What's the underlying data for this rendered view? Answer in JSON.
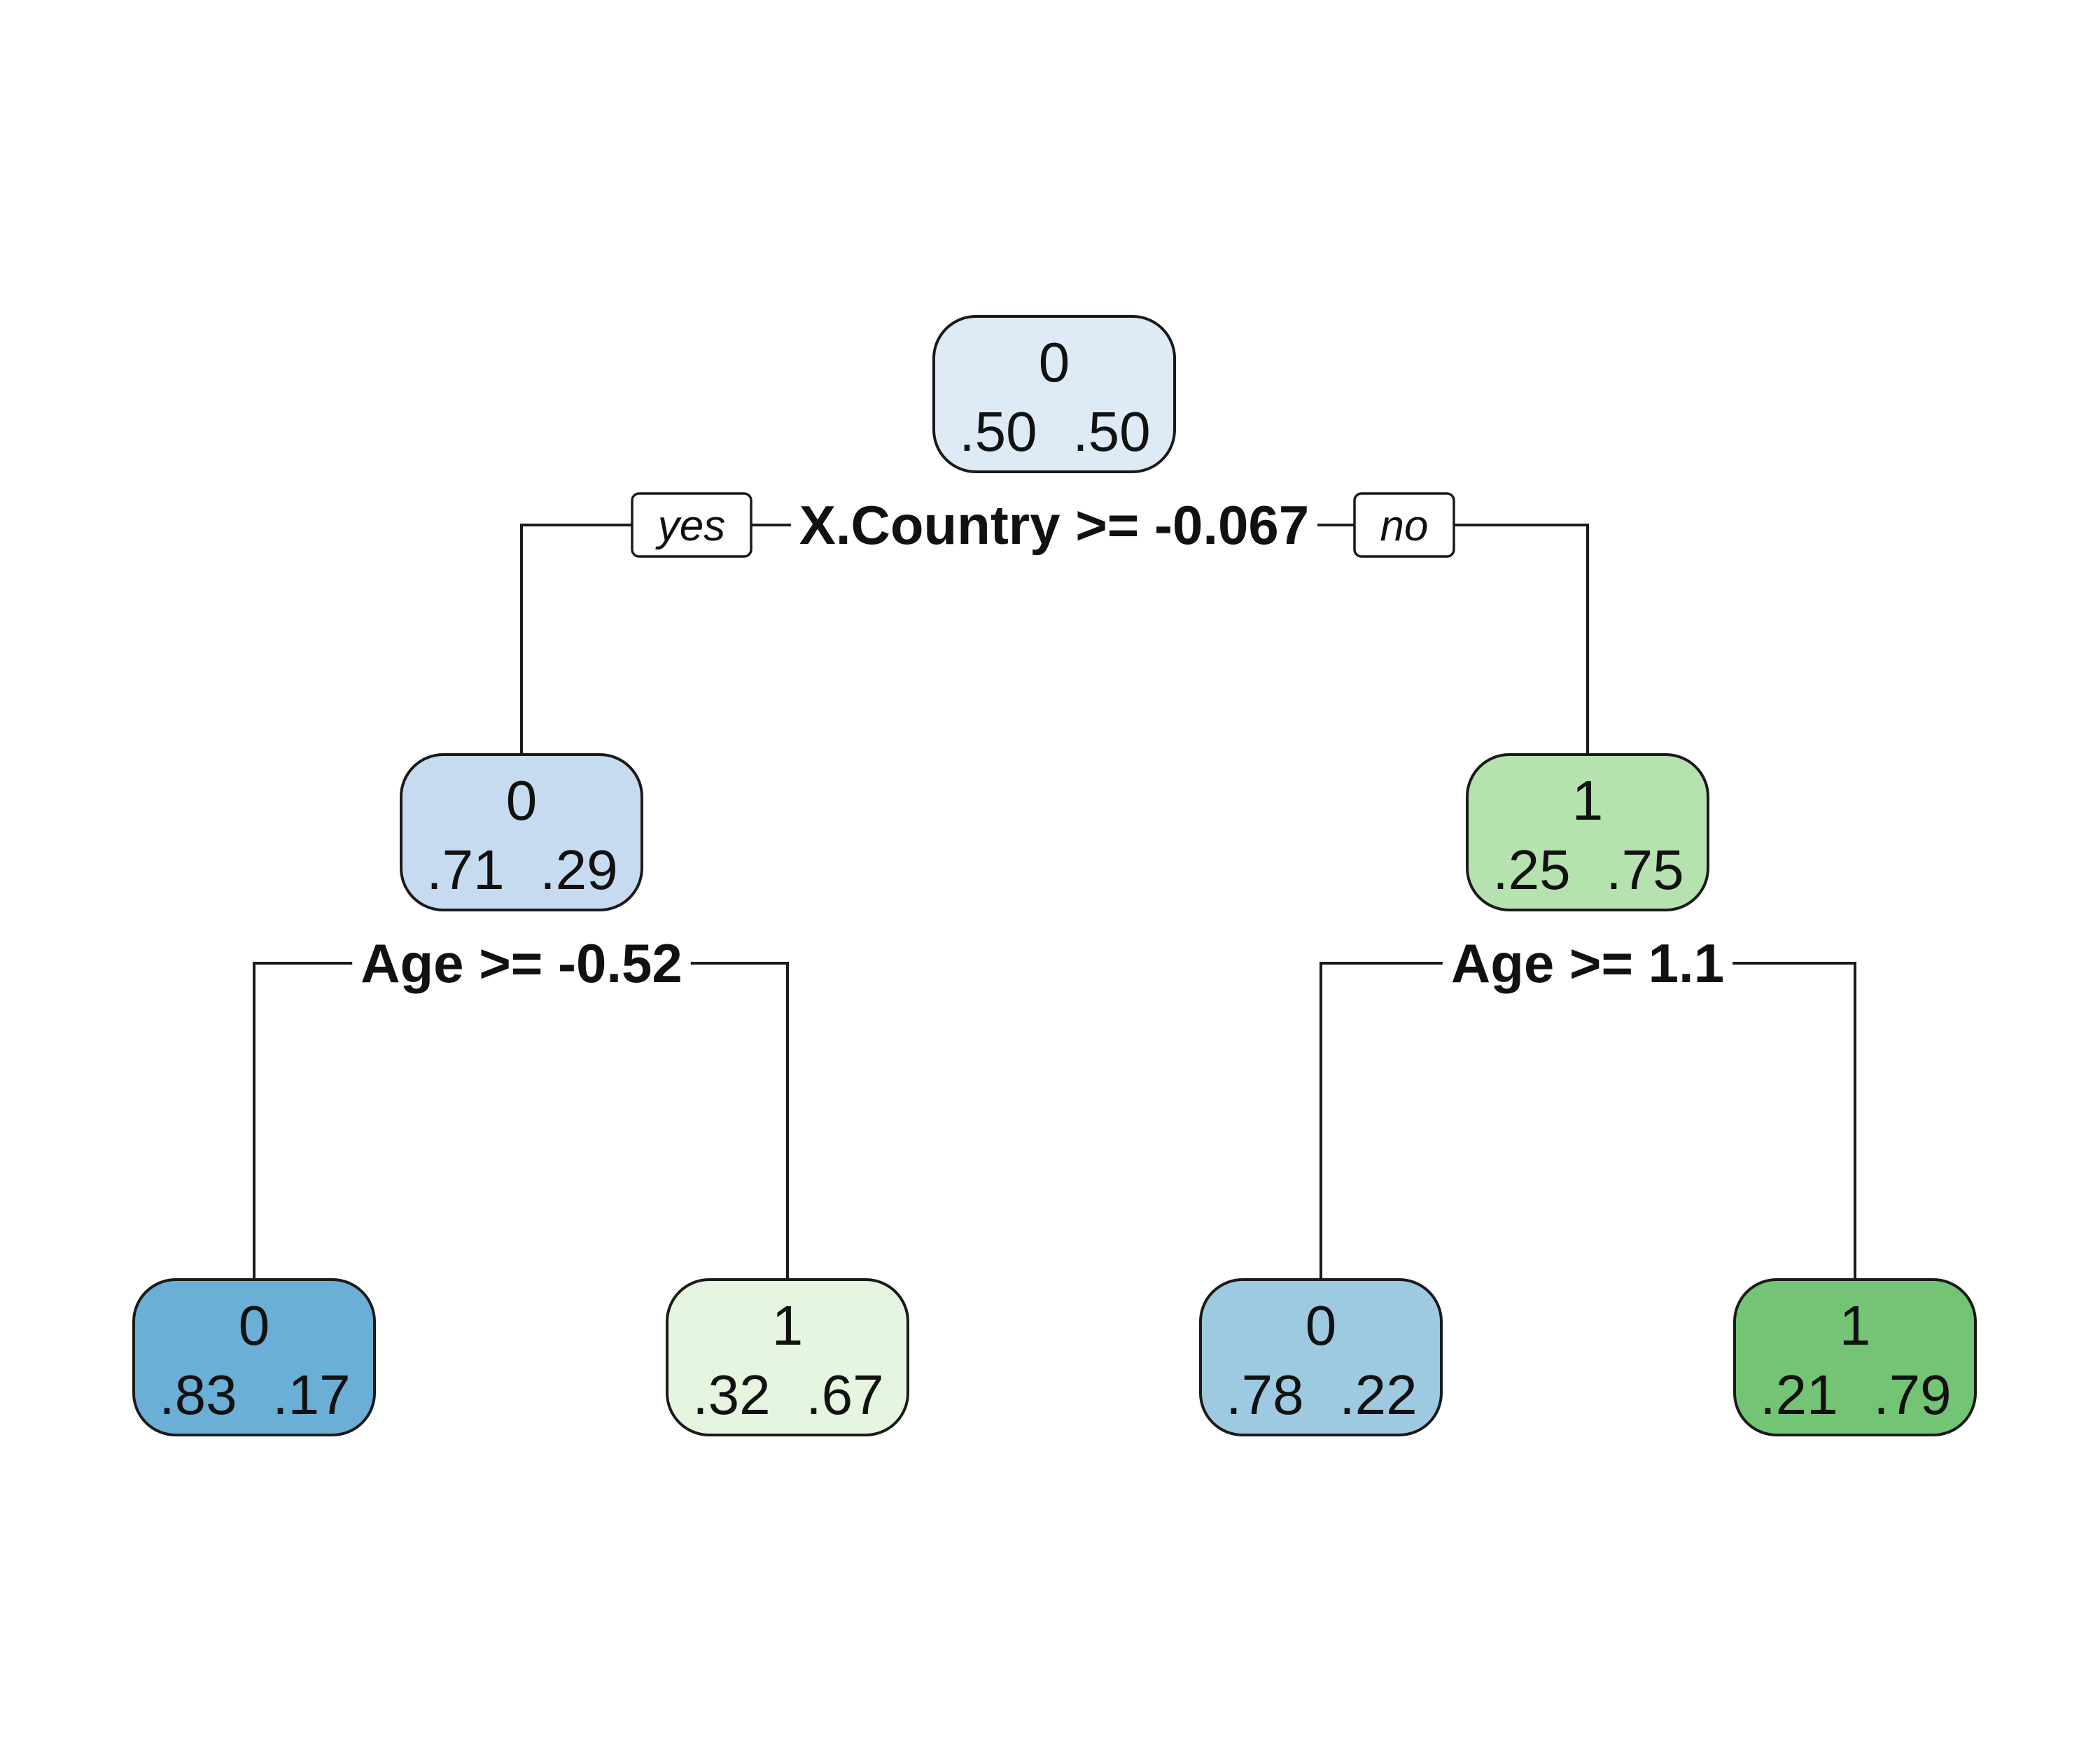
{
  "tree": {
    "nodes": [
      {
        "id": "root",
        "class": "0",
        "probs": [
          ".50",
          ".50"
        ],
        "color": "#DEEBF7"
      },
      {
        "id": "left",
        "class": "0",
        "probs": [
          ".71",
          ".29"
        ],
        "color": "#C6DBEF"
      },
      {
        "id": "right",
        "class": "1",
        "probs": [
          ".25",
          ".75"
        ],
        "color": "#B5E2AE"
      },
      {
        "id": "leaf-ll",
        "class": "0",
        "probs": [
          ".83",
          ".17"
        ],
        "color": "#6BAED6"
      },
      {
        "id": "leaf-lr",
        "class": "1",
        "probs": [
          ".32",
          ".67"
        ],
        "color": "#E5F5E0"
      },
      {
        "id": "leaf-rl",
        "class": "0",
        "probs": [
          ".78",
          ".22"
        ],
        "color": "#9ECAE1"
      },
      {
        "id": "leaf-rr",
        "class": "1",
        "probs": [
          ".21",
          ".79"
        ],
        "color": "#74C476"
      }
    ],
    "splits": [
      {
        "id": "root",
        "label": "X.Country >= -0.067"
      },
      {
        "id": "left",
        "label": "Age >= -0.52"
      },
      {
        "id": "right",
        "label": "Age >= 1.1"
      }
    ],
    "branch_labels": {
      "yes": "yes",
      "no": "no"
    }
  }
}
